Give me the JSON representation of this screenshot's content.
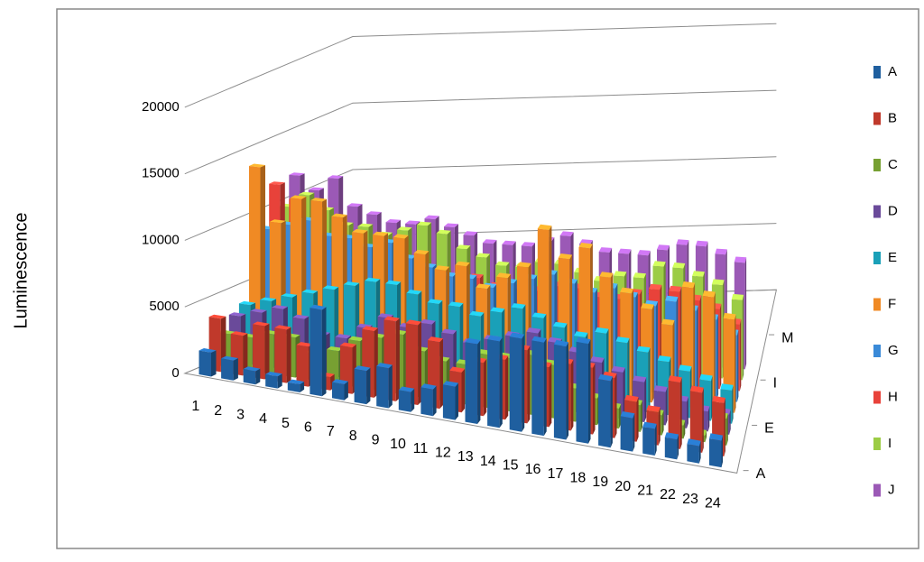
{
  "chart_data": {
    "type": "bar3d",
    "y_label": "Luminescence",
    "categories": [
      "1",
      "2",
      "3",
      "4",
      "5",
      "6",
      "7",
      "8",
      "9",
      "10",
      "11",
      "12",
      "13",
      "14",
      "15",
      "16",
      "17",
      "18",
      "19",
      "20",
      "21",
      "22",
      "23",
      "24"
    ],
    "ylim": [
      0,
      20000
    ],
    "yticks": [
      0,
      5000,
      10000,
      15000,
      20000
    ],
    "zlim": [
      0,
      15
    ],
    "zticks": [
      {
        "value": 0,
        "label": "A"
      },
      {
        "value": 4,
        "label": "E"
      },
      {
        "value": 8,
        "label": "I"
      },
      {
        "value": 12,
        "label": "M"
      }
    ],
    "grid": true,
    "legend": "right",
    "series": [
      {
        "name": "A",
        "color": "#1f5f9f",
        "values": [
          1800,
          1500,
          1000,
          900,
          600,
          6500,
          1200,
          2500,
          3000,
          1500,
          2000,
          2500,
          6000,
          6500,
          7000,
          7000,
          7000,
          7500,
          5000,
          2500,
          2000,
          1500,
          1300,
          2000
        ]
      },
      {
        "name": "B",
        "color": "#c0392b",
        "values": [
          4000,
          3000,
          4000,
          4000,
          3000,
          1000,
          3500,
          5000,
          6000,
          6000,
          5000,
          3000,
          4000,
          4500,
          5500,
          4500,
          5000,
          5000,
          4500,
          3000,
          2500,
          5000,
          4500,
          4000
        ]
      },
      {
        "name": "C",
        "color": "#77a032",
        "values": [
          2500,
          2500,
          3000,
          3000,
          2000,
          2500,
          3500,
          4000,
          4500,
          3500,
          3000,
          3000,
          4000,
          4000,
          4500,
          4000,
          2500,
          2000,
          1500,
          2000,
          1500,
          1000,
          500,
          2000
        ]
      },
      {
        "name": "D",
        "color": "#6a4a9a",
        "values": [
          3500,
          4000,
          4500,
          4000,
          3000,
          3000,
          4000,
          5000,
          4500,
          5000,
          4500,
          4000,
          4500,
          5000,
          5500,
          5000,
          4500,
          4000,
          3500,
          3000,
          2500,
          2000,
          1500,
          1500
        ]
      },
      {
        "name": "E",
        "color": "#1aa0b8",
        "values": [
          4000,
          4500,
          5000,
          5500,
          6000,
          6500,
          7000,
          7000,
          6500,
          6000,
          6000,
          5500,
          6000,
          6500,
          6000,
          5500,
          5000,
          5500,
          5000,
          4500,
          4000,
          3500,
          3000,
          2500
        ]
      },
      {
        "name": "F",
        "color": "#f08a24",
        "values": [
          14000,
          10000,
          12000,
          12000,
          11000,
          10000,
          10000,
          10000,
          9000,
          8000,
          8500,
          7000,
          8000,
          9000,
          12000,
          10000,
          11000,
          9000,
          8000,
          7000,
          6000,
          9000,
          8500,
          7000
        ]
      },
      {
        "name": "G",
        "color": "#3a8ad8",
        "values": [
          9000,
          9500,
          10000,
          9000,
          9000,
          8500,
          9000,
          8000,
          7500,
          7000,
          7000,
          6500,
          7000,
          7500,
          8000,
          7500,
          7000,
          7500,
          7000,
          6500,
          7000,
          6500,
          6000,
          5000
        ]
      },
      {
        "name": "H",
        "color": "#e8423a",
        "values": [
          12000,
          11000,
          8000,
          8000,
          7000,
          7000,
          7000,
          6500,
          6000,
          6000,
          6500,
          6000,
          6000,
          6000,
          6500,
          6500,
          6000,
          6000,
          6500,
          7000,
          7000,
          6500,
          6000,
          5000
        ]
      },
      {
        "name": "I",
        "color": "#9ccc45",
        "values": [
          10000,
          11000,
          10000,
          9000,
          9000,
          8500,
          9000,
          9500,
          9000,
          8000,
          7500,
          7000,
          7000,
          7500,
          7500,
          7000,
          6500,
          7000,
          7000,
          8000,
          8000,
          7500,
          7000,
          6000
        ]
      },
      {
        "name": "J",
        "color": "#9b59b6",
        "values": [
          12000,
          11000,
          12000,
          10000,
          9500,
          9000,
          9000,
          9500,
          9000,
          8500,
          8000,
          8000,
          8000,
          8500,
          9000,
          8500,
          8000,
          8000,
          8000,
          8500,
          9000,
          9000,
          8500,
          8000
        ]
      }
    ]
  }
}
